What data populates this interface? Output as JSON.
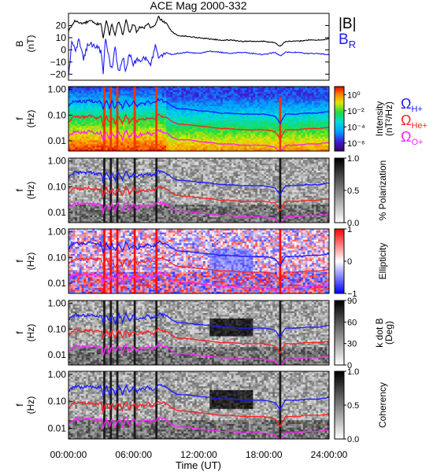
{
  "chart_data": {
    "type": "line",
    "title": "ACE Mag 2000-332",
    "xlabel": "Time (UT)",
    "x_ticks": [
      "00:00:00",
      "06:00:00",
      "12:00:00",
      "18:00:00",
      "24:00:00"
    ],
    "x_range_hours": [
      0,
      24
    ],
    "panels": [
      {
        "kind": "timeseries",
        "ylabel_lines": [
          "B",
          "(nT)"
        ],
        "ylim": [
          -25,
          30
        ],
        "yticks": [
          "20",
          "10",
          "0",
          "−10",
          "−20"
        ],
        "yticks_values": [
          20,
          10,
          0,
          -10,
          -20
        ],
        "legend": [
          {
            "label": "|B|",
            "color": "#000000"
          },
          {
            "label": "B",
            "sub": "R",
            "color": "#1a1aff"
          }
        ],
        "series": [
          {
            "name": "|B|",
            "color": "#000000",
            "x": [
              0,
              0.3,
              0.6,
              1.0,
              1.5,
              2.0,
              2.5,
              3.0,
              3.2,
              3.5,
              3.8,
              4.0,
              4.3,
              4.6,
              5.0,
              5.3,
              5.6,
              6.0,
              6.3,
              6.6,
              7.0,
              7.3,
              7.6,
              8.0,
              8.3,
              8.6,
              9.0,
              9.5,
              10,
              11,
              12,
              13,
              14,
              15,
              16,
              17,
              18,
              19,
              19.5,
              20,
              21,
              22,
              23,
              24
            ],
            "y": [
              15,
              20,
              24,
              22,
              22,
              24,
              21,
              22,
              10,
              24,
              12,
              22,
              11,
              24,
              12,
              26,
              14,
              22,
              14,
              19,
              18,
              22,
              18,
              20,
              27,
              24,
              22,
              15,
              12,
              11,
              10,
              9,
              8,
              8,
              7,
              7,
              7,
              6,
              3,
              7,
              7,
              8,
              8,
              9
            ]
          },
          {
            "name": "B_R",
            "color": "#1a1aff",
            "x": [
              0,
              0.3,
              0.6,
              1.0,
              1.4,
              1.8,
              2.2,
              2.6,
              3.0,
              3.2,
              3.4,
              3.8,
              4.0,
              4.3,
              4.6,
              5.0,
              5.3,
              5.6,
              6.0,
              6.3,
              6.6,
              7.0,
              7.3,
              7.6,
              8.0,
              8.3,
              8.6,
              9.0,
              9.5,
              10,
              11,
              12,
              13,
              14,
              15,
              16,
              17,
              18,
              19,
              19.5,
              20,
              21,
              22,
              23,
              24
            ],
            "y": [
              -22,
              6,
              0,
              8,
              -8,
              5,
              4,
              3,
              -2,
              -18,
              8,
              -10,
              -16,
              2,
              -20,
              -5,
              -18,
              -3,
              -12,
              -8,
              -10,
              -6,
              -10,
              -12,
              5,
              -8,
              -5,
              -2,
              -4,
              -3,
              -2,
              -3,
              -1,
              -2,
              -3,
              -2,
              -3,
              -4,
              -2,
              -5,
              -2,
              -2,
              -3,
              -3,
              -4
            ]
          }
        ]
      },
      {
        "kind": "spectrogram",
        "palette": "rainbow",
        "ylabel_lines": [
          "f",
          "(Hz)"
        ],
        "yticks": [
          "1.00",
          "0.10",
          "0.01"
        ],
        "ylim_hz": [
          0.004,
          1.3
        ],
        "colorbar": {
          "label_lines": [
            "Intensity",
            "(nT²/Hz)"
          ],
          "ticks": [
            "10⁰",
            "10⁻²",
            "10⁻⁴",
            "10⁻⁶"
          ],
          "tick_values": [
            0,
            -2,
            -4,
            -6
          ],
          "range_log": [
            -7,
            1
          ]
        },
        "legend": [
          {
            "label": "Ω",
            "sub": "H+",
            "color": "#1a1aff"
          },
          {
            "label": "Ω",
            "sub": "He+",
            "color": "#ff2020"
          },
          {
            "label": "Ω",
            "sub": "O+",
            "color": "#ff20ff"
          }
        ]
      },
      {
        "kind": "spectrogram",
        "palette": "gray",
        "ylabel_lines": [
          "f",
          "(Hz)"
        ],
        "yticks": [
          "1.00",
          "0.10",
          "0.01"
        ],
        "ylim_hz": [
          0.004,
          1.3
        ],
        "colorbar": {
          "label_lines": [
            "% Polarization"
          ],
          "ticks": [
            "1.0",
            "0.5",
            "0.0"
          ],
          "tick_values": [
            1.0,
            0.5,
            0.0
          ],
          "range": [
            0,
            1
          ]
        }
      },
      {
        "kind": "spectrogram",
        "palette": "bwr",
        "ylabel_lines": [
          "f",
          "(Hz)"
        ],
        "yticks": [
          "1.00",
          "0.10",
          "0.01"
        ],
        "ylim_hz": [
          0.004,
          1.3
        ],
        "colorbar": {
          "label_lines": [
            "Ellipticity"
          ],
          "ticks": [
            "1",
            "0",
            "−1"
          ],
          "tick_values": [
            1,
            0,
            -1
          ],
          "range": [
            -1,
            1
          ]
        }
      },
      {
        "kind": "spectrogram",
        "palette": "gray",
        "ylabel_lines": [
          "f",
          "(Hz)"
        ],
        "yticks": [
          "1.00",
          "0.10",
          "0.01"
        ],
        "ylim_hz": [
          0.004,
          1.3
        ],
        "colorbar": {
          "label_lines": [
            "k dot B",
            "(Deg)"
          ],
          "ticks": [
            "90",
            "60",
            "30",
            "0"
          ],
          "tick_values": [
            90,
            60,
            30,
            0
          ],
          "range": [
            0,
            90
          ]
        }
      },
      {
        "kind": "spectrogram",
        "palette": "gray",
        "ylabel_lines": [
          "f",
          "(Hz)"
        ],
        "yticks": [
          "1.00",
          "0.10",
          "0.01"
        ],
        "ylim_hz": [
          0.004,
          1.3
        ],
        "colorbar": {
          "label_lines": [
            "Coherency"
          ],
          "ticks": [
            "1.0",
            "0.5",
            "0.0"
          ],
          "tick_values": [
            1.0,
            0.5,
            0.0
          ],
          "range": [
            0,
            1
          ]
        }
      }
    ],
    "gyrofrequency_curves": [
      {
        "name": "H+",
        "color": "#1a1aff",
        "x": [
          0,
          0.3,
          0.6,
          1.0,
          1.5,
          2.0,
          2.5,
          3.0,
          3.2,
          3.5,
          3.8,
          4.0,
          4.3,
          4.6,
          5.0,
          5.3,
          5.6,
          6.0,
          6.3,
          6.6,
          7.0,
          7.3,
          7.6,
          8.0,
          8.3,
          8.6,
          9.0,
          9.5,
          10,
          11,
          12,
          13,
          14,
          15,
          16,
          17,
          18,
          19,
          19.5,
          20,
          21,
          22,
          23,
          24
        ],
        "y": [
          0.23,
          0.3,
          0.37,
          0.34,
          0.34,
          0.37,
          0.32,
          0.34,
          0.15,
          0.37,
          0.18,
          0.34,
          0.17,
          0.37,
          0.18,
          0.4,
          0.21,
          0.34,
          0.21,
          0.29,
          0.27,
          0.34,
          0.27,
          0.3,
          0.41,
          0.37,
          0.34,
          0.23,
          0.18,
          0.17,
          0.15,
          0.14,
          0.12,
          0.12,
          0.11,
          0.11,
          0.11,
          0.09,
          0.045,
          0.11,
          0.11,
          0.12,
          0.12,
          0.14
        ]
      },
      {
        "name": "He+",
        "color": "#ff2020",
        "x": [
          0,
          0.3,
          0.6,
          1.0,
          1.5,
          2.0,
          2.5,
          3.0,
          3.2,
          3.5,
          3.8,
          4.0,
          4.3,
          4.6,
          5.0,
          5.3,
          5.6,
          6.0,
          6.3,
          6.6,
          7.0,
          7.3,
          7.6,
          8.0,
          8.3,
          8.6,
          9.0,
          9.5,
          10,
          11,
          12,
          13,
          14,
          15,
          16,
          17,
          18,
          19,
          19.5,
          20,
          21,
          22,
          23,
          24
        ],
        "y": [
          0.057,
          0.076,
          0.092,
          0.084,
          0.084,
          0.092,
          0.08,
          0.084,
          0.038,
          0.092,
          0.046,
          0.084,
          0.042,
          0.092,
          0.046,
          0.1,
          0.053,
          0.084,
          0.053,
          0.072,
          0.069,
          0.084,
          0.069,
          0.076,
          0.1,
          0.092,
          0.084,
          0.057,
          0.046,
          0.042,
          0.038,
          0.034,
          0.03,
          0.03,
          0.027,
          0.027,
          0.027,
          0.023,
          0.011,
          0.027,
          0.027,
          0.03,
          0.03,
          0.034
        ]
      },
      {
        "name": "O+",
        "color": "#ff20ff",
        "x": [
          0,
          0.3,
          0.6,
          1.0,
          1.5,
          2.0,
          2.5,
          3.0,
          3.2,
          3.5,
          3.8,
          4.0,
          4.3,
          4.6,
          5.0,
          5.3,
          5.6,
          6.0,
          6.3,
          6.6,
          7.0,
          7.3,
          7.6,
          8.0,
          8.3,
          8.6,
          9.0,
          9.5,
          10,
          11,
          12,
          13,
          14,
          15,
          16,
          17,
          18,
          19,
          19.5,
          20,
          21,
          22,
          23,
          24
        ],
        "y": [
          0.014,
          0.019,
          0.023,
          0.021,
          0.021,
          0.023,
          0.02,
          0.021,
          0.0095,
          0.023,
          0.011,
          0.021,
          0.011,
          0.023,
          0.011,
          0.025,
          0.013,
          0.021,
          0.013,
          0.018,
          0.017,
          0.021,
          0.017,
          0.019,
          0.026,
          0.023,
          0.021,
          0.014,
          0.011,
          0.011,
          0.0095,
          0.0086,
          0.0076,
          0.0076,
          0.0067,
          0.0067,
          0.0067,
          0.0057,
          0.0029,
          0.0067,
          0.0067,
          0.0076,
          0.0076,
          0.0086
        ]
      }
    ]
  }
}
